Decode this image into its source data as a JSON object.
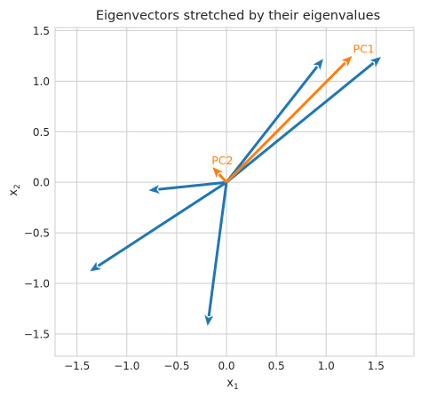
{
  "chart_data": {
    "type": "quiver",
    "title": "Eigenvectors stretched by their eigenvalues",
    "xlabel": "x",
    "xlabel_sub": "1",
    "ylabel": "x",
    "ylabel_sub": "2",
    "xlim": [
      -1.72,
      1.88
    ],
    "ylim": [
      -1.72,
      1.53
    ],
    "xticks": [
      -1.5,
      -1.0,
      -0.5,
      0.0,
      0.5,
      1.0,
      1.5
    ],
    "xtick_labels": [
      "−1.5",
      "−1.0",
      "−0.5",
      "0.0",
      "0.5",
      "1.0",
      "1.5"
    ],
    "yticks": [
      -1.5,
      -1.0,
      -0.5,
      0.0,
      0.5,
      1.0,
      1.5
    ],
    "ytick_labels": [
      "−1.5",
      "−1.0",
      "−0.5",
      "0.0",
      "0.5",
      "1.0",
      "1.5"
    ],
    "grid": true,
    "origin": [
      0,
      0
    ],
    "series": [
      {
        "color": "#1f77b4",
        "vectors": [
          [
            0.97,
            1.22
          ],
          [
            1.55,
            1.24
          ],
          [
            -0.78,
            -0.08
          ],
          [
            -1.37,
            -0.88
          ],
          [
            -0.19,
            -1.42
          ]
        ]
      },
      {
        "color": "#ff7f0e",
        "vectors": [
          [
            1.26,
            1.25
          ],
          [
            -0.14,
            0.15
          ]
        ]
      }
    ],
    "annotations": [
      {
        "text": "PC1",
        "x": 1.27,
        "y": 1.26,
        "color": "#ff7f0e"
      },
      {
        "text": "PC2",
        "x": -0.15,
        "y": 0.16,
        "color": "#ff7f0e"
      }
    ]
  }
}
